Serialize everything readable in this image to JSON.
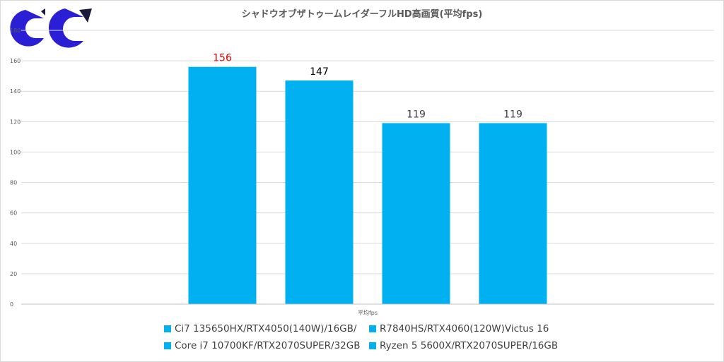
{
  "chart_data": {
    "type": "bar",
    "title": "シャドウオブザトゥームレイダーフルHD高画質(平均fps)",
    "categories": [
      "平均fps"
    ],
    "ylim": [
      0,
      180
    ],
    "yticks": [
      0,
      20,
      40,
      60,
      80,
      100,
      120,
      140,
      160,
      180
    ],
    "grid": true,
    "legend_position": "bottom",
    "series": [
      {
        "name": "Ci7 135650HX/RTX4050(140W)/16GB/",
        "values": [
          156
        ],
        "label_color": "#e00000"
      },
      {
        "name": "R7840HS/RTX4060(120W)Victus 16",
        "values": [
          147
        ],
        "label_color": "#000000"
      },
      {
        "name": "Core i7 10700KF/RTX2070SUPER/32GB",
        "values": [
          119
        ],
        "label_color": "#404040"
      },
      {
        "name": "Ryzen 5 5600X/RTX2070SUPER/16GB",
        "values": [
          119
        ],
        "label_color": "#404040"
      }
    ],
    "bar_color": "#00b0f0",
    "gridline_color": "#d9d9d9"
  },
  "logo": {
    "icon": "cc-logo",
    "colors": [
      "#2b1fd6",
      "#1a1a3a"
    ]
  }
}
